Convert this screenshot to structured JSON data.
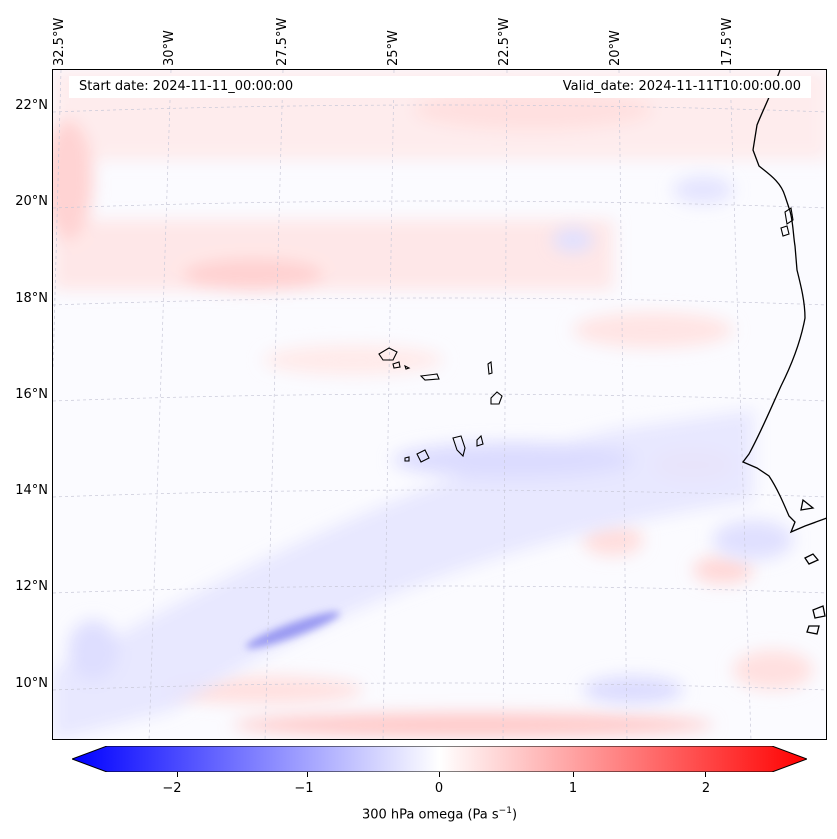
{
  "map": {
    "banner": {
      "start": "Start date: 2024-11-11_00:00:00",
      "valid": "Valid_date: 2024-11-11T10:00:00.00"
    },
    "lon_labels": [
      "32.5°W",
      "30°W",
      "27.5°W",
      "25°W",
      "22.5°W",
      "20°W",
      "17.5°W"
    ],
    "lat_labels": [
      "22°N",
      "20°N",
      "18°N",
      "16°N",
      "14°N",
      "12°N",
      "10°N"
    ],
    "colors": {
      "negative": "#0000ff",
      "neutral": "#ffffff",
      "positive": "#ff0000",
      "coast": "#000000",
      "grid": "#c8c8d8"
    }
  },
  "colorbar": {
    "label": "300 hPa omega (Pa s",
    "label_unit_exp": "−1",
    "label_close": ")",
    "ticks": [
      "−2",
      "−1",
      "0",
      "1",
      "2"
    ],
    "range": [
      -2.7,
      2.7
    ]
  }
}
